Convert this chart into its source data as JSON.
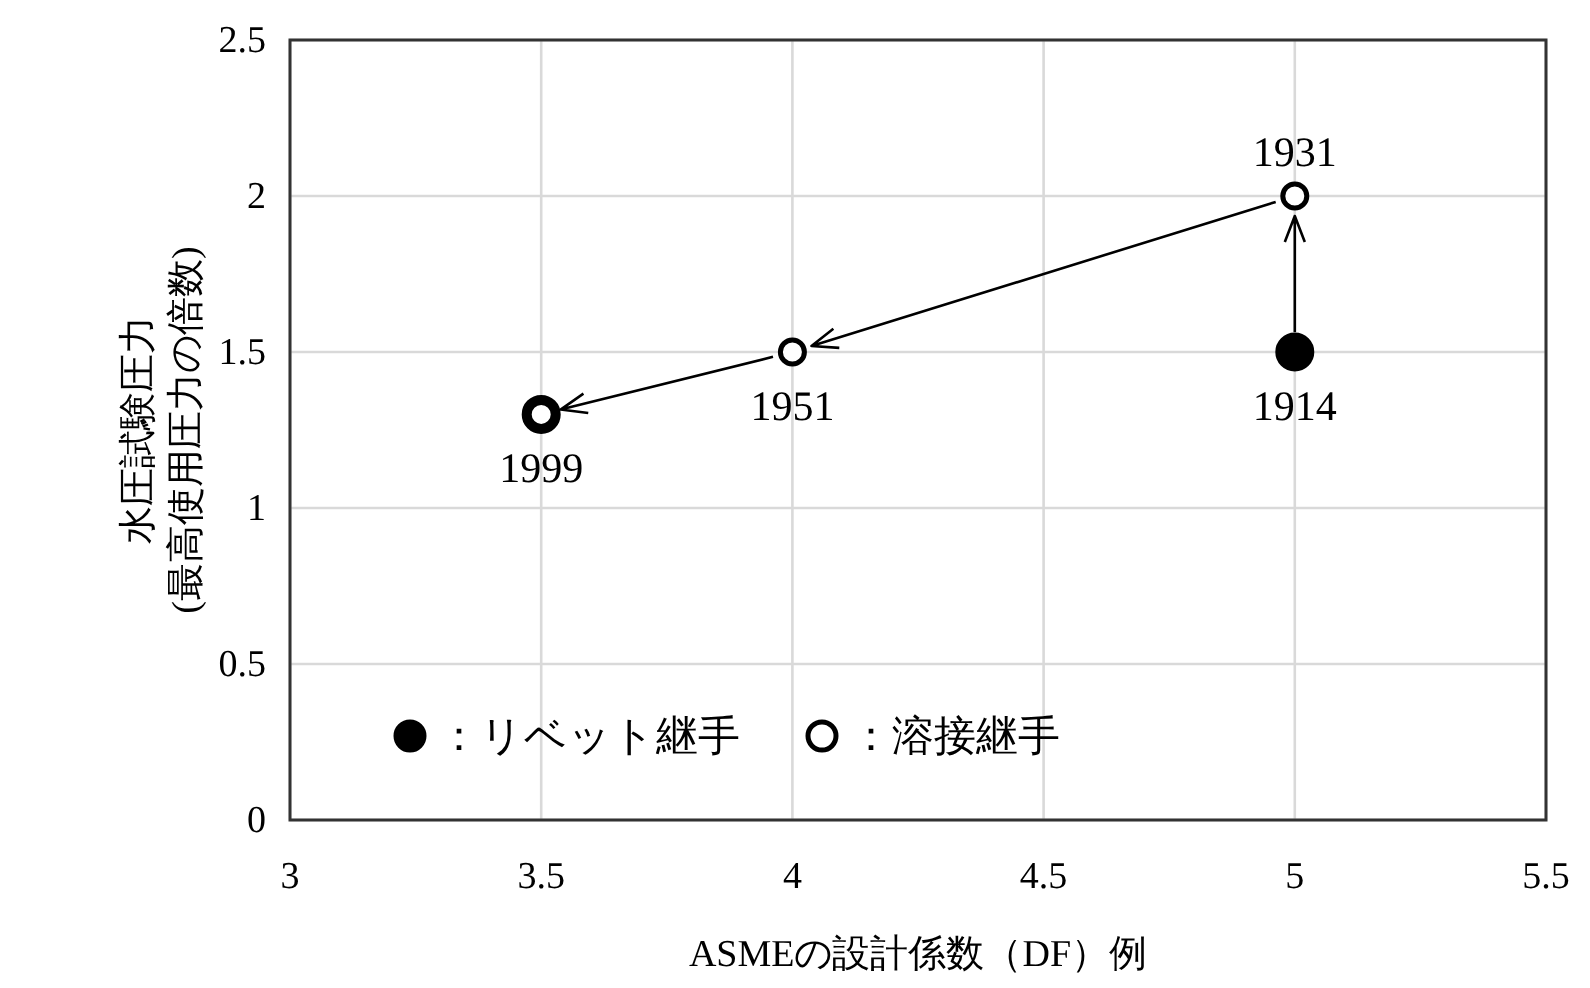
{
  "chart_data": {
    "type": "scatter",
    "xlabel": "ASMEの設計係数（DF）例",
    "ylabel": "水圧試験圧力\n(最高使用圧力の倍数)",
    "xlim": [
      3,
      5.5
    ],
    "xticks": [
      3,
      3.5,
      4,
      4.5,
      5,
      5.5
    ],
    "ylim": [
      0,
      2.5
    ],
    "yticks": [
      0,
      0.5,
      1,
      1.5,
      2,
      2.5
    ],
    "grid": true,
    "legend": "bottom",
    "marker": "circle",
    "series": [
      {
        "name": "：リベット継手",
        "color": "#000000",
        "x": [
          5,
          3.5
        ],
        "values": [
          1.5,
          1.3
        ]
      },
      {
        "name": "：溶接継手",
        "color": "#ffffff",
        "x": [
          5,
          4,
          3.5
        ],
        "values": [
          2,
          1.5,
          1.3
        ]
      }
    ],
    "annotations": [
      {
        "text": "1914",
        "x": 5,
        "y": 1.5
      },
      {
        "text": "1931",
        "x": 5,
        "y": 2
      },
      {
        "text": "1951",
        "x": 4,
        "y": 1.5
      },
      {
        "text": "1999",
        "x": 3.5,
        "y": 1.3
      }
    ]
  }
}
